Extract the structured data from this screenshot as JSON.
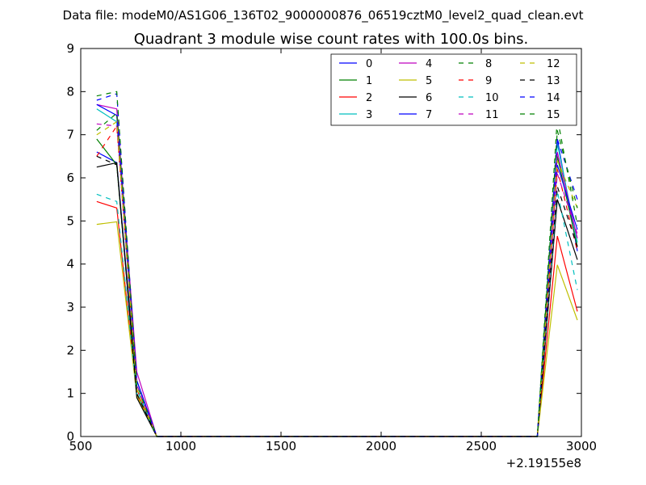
{
  "chart_data": {
    "type": "line",
    "suptitle": "Data file: modeM0/AS1G06_136T02_9000000876_06519cztM0_level2_quad_clean.evt",
    "title": "Quadrant 3 module wise count rates with 100.0s bins.",
    "xlabel": "",
    "ylabel": "",
    "x_offset_label": "+2.19155e8",
    "xlim": [
      500,
      3000
    ],
    "ylim": [
      0,
      9
    ],
    "x_ticks": [
      500,
      1000,
      1500,
      2000,
      2500,
      3000
    ],
    "y_ticks": [
      0,
      1,
      2,
      3,
      4,
      5,
      6,
      7,
      8,
      9
    ],
    "x": [
      580,
      680,
      780,
      880,
      980,
      1080,
      2780,
      2880,
      2980
    ],
    "legend_position": "top-right",
    "legend_columns": 4,
    "series": [
      {
        "name": "0",
        "color": "#0000ff",
        "dash": "solid",
        "values": [
          6.6,
          6.35,
          1.1,
          0,
          0,
          0,
          0,
          6.9,
          4.3
        ]
      },
      {
        "name": "1",
        "color": "#008000",
        "dash": "solid",
        "values": [
          6.9,
          6.3,
          1.0,
          0,
          0,
          0,
          0,
          6.5,
          4.4
        ]
      },
      {
        "name": "2",
        "color": "#ff0000",
        "dash": "solid",
        "values": [
          5.45,
          5.3,
          1.0,
          0,
          0,
          0,
          0,
          4.65,
          2.9
        ]
      },
      {
        "name": "3",
        "color": "#00bfbf",
        "dash": "solid",
        "values": [
          7.6,
          7.3,
          1.1,
          0,
          0,
          0,
          0,
          6.8,
          4.5
        ]
      },
      {
        "name": "4",
        "color": "#bf00bf",
        "dash": "solid",
        "values": [
          7.7,
          7.6,
          1.5,
          0,
          0,
          0,
          0,
          6.6,
          4.6
        ]
      },
      {
        "name": "5",
        "color": "#bfbf00",
        "dash": "solid",
        "values": [
          4.92,
          4.98,
          0.95,
          0,
          0,
          0,
          0,
          3.98,
          2.7
        ]
      },
      {
        "name": "6",
        "color": "#000000",
        "dash": "solid",
        "values": [
          6.25,
          6.35,
          0.9,
          0,
          0,
          0,
          0,
          5.5,
          4.1
        ]
      },
      {
        "name": "7",
        "color": "#0000ff",
        "dash": "solid",
        "values": [
          7.7,
          7.45,
          1.3,
          0,
          0,
          0,
          0,
          6.3,
          4.8
        ]
      },
      {
        "name": "8",
        "color": "#008000",
        "dash": "dashed",
        "values": [
          7.1,
          7.5,
          1.2,
          0,
          0,
          0,
          0,
          7.4,
          4.9
        ]
      },
      {
        "name": "9",
        "color": "#ff0000",
        "dash": "dashed",
        "values": [
          6.5,
          7.2,
          1.1,
          0,
          0,
          0,
          0,
          6.2,
          4.3
        ]
      },
      {
        "name": "10",
        "color": "#00bfbf",
        "dash": "dashed",
        "values": [
          5.62,
          5.45,
          1.0,
          0,
          0,
          0,
          0,
          5.7,
          3.4
        ]
      },
      {
        "name": "11",
        "color": "#bf00bf",
        "dash": "dashed",
        "values": [
          7.25,
          7.2,
          1.2,
          0,
          0,
          0,
          0,
          6.1,
          4.7
        ]
      },
      {
        "name": "12",
        "color": "#bfbf00",
        "dash": "dashed",
        "values": [
          7.0,
          7.3,
          1.1,
          0,
          0,
          0,
          0,
          6.4,
          5.3
        ]
      },
      {
        "name": "13",
        "color": "#000000",
        "dash": "dashed",
        "values": [
          6.5,
          6.3,
          1.0,
          0,
          0,
          0,
          0,
          5.8,
          4.4
        ]
      },
      {
        "name": "14",
        "color": "#0000ff",
        "dash": "dashed",
        "values": [
          7.8,
          7.95,
          1.3,
          0,
          0,
          0,
          0,
          6.9,
          5.5
        ]
      },
      {
        "name": "15",
        "color": "#008000",
        "dash": "dashed",
        "values": [
          7.9,
          8.0,
          1.2,
          0,
          0,
          0,
          0,
          7.1,
          5.3
        ]
      }
    ]
  }
}
